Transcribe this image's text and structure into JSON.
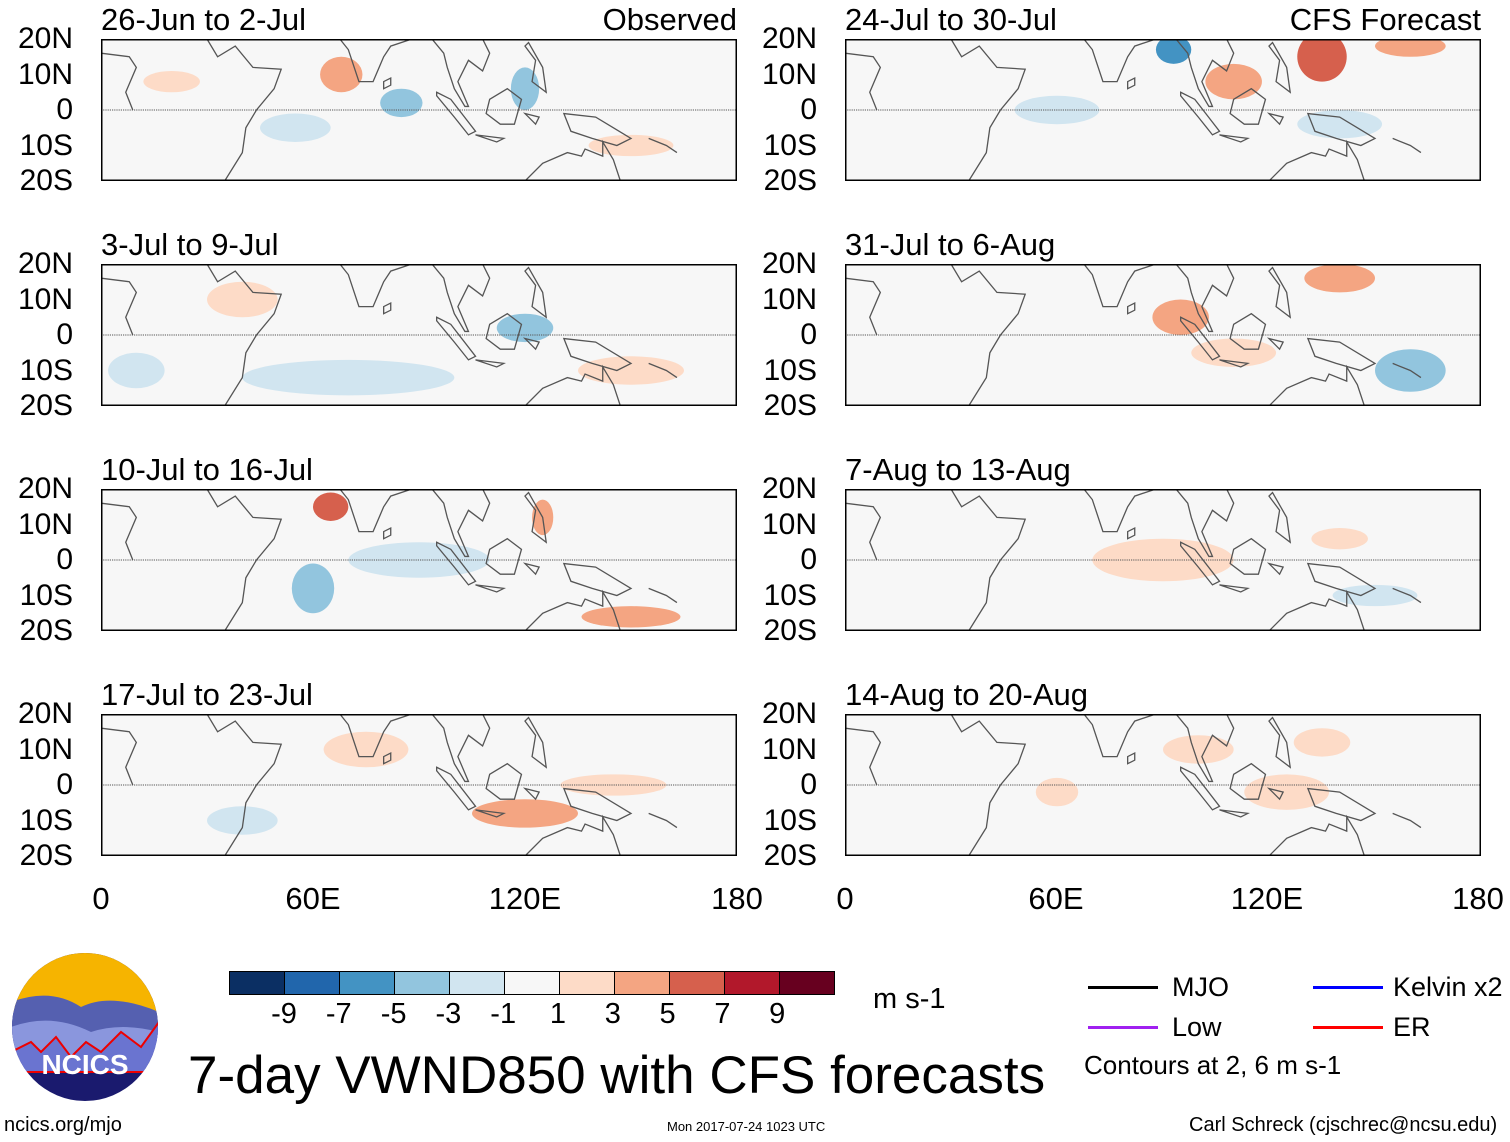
{
  "panels": [
    {
      "title": "26-Jun to 2-Jul",
      "label": "Observed",
      "column": "left"
    },
    {
      "title": "3-Jul to 9-Jul",
      "label": "",
      "column": "left"
    },
    {
      "title": "10-Jul to 16-Jul",
      "label": "",
      "column": "left"
    },
    {
      "title": "17-Jul to 23-Jul",
      "label": "",
      "column": "left"
    },
    {
      "title": "24-Jul to 30-Jul",
      "label": "CFS Forecast",
      "column": "right"
    },
    {
      "title": "31-Jul to 6-Aug",
      "label": "",
      "column": "right"
    },
    {
      "title": "7-Aug to 13-Aug",
      "label": "",
      "column": "right"
    },
    {
      "title": "14-Aug to 20-Aug",
      "label": "",
      "column": "right"
    }
  ],
  "y_axis_labels": [
    "20N",
    "10N",
    "0",
    "10S",
    "20S"
  ],
  "x_axis_labels": [
    "0",
    "60E",
    "120E",
    "180"
  ],
  "colorbar": {
    "colors": [
      "#0b2f63",
      "#2166ac",
      "#4393c3",
      "#92c5de",
      "#d1e5f0",
      "#f7f7f7",
      "#fddbc7",
      "#f4a582",
      "#d6604d",
      "#b2182b",
      "#67001f"
    ],
    "labels": [
      "-9",
      "-7",
      "-5",
      "-3",
      "-1",
      "1",
      "3",
      "5",
      "7",
      "9"
    ],
    "units": "m s-1"
  },
  "legend": {
    "items": [
      {
        "label": "MJO",
        "color": "#000000"
      },
      {
        "label": "Kelvin x2",
        "color": "#0000ff"
      },
      {
        "label": "Low",
        "color": "#a020f0"
      },
      {
        "label": "ER",
        "color": "#ff0000"
      }
    ],
    "contours_note": "Contours at 2, 6 m s-1"
  },
  "title": "7-day VWND850 with CFS forecasts",
  "logo_text": "NCICS",
  "footer": {
    "url": "ncics.org/mjo",
    "timestamp": "Mon 2017-07-24 1023 UTC",
    "credit": "Carl Schreck (cjschrec@ncsu.edu)"
  }
}
